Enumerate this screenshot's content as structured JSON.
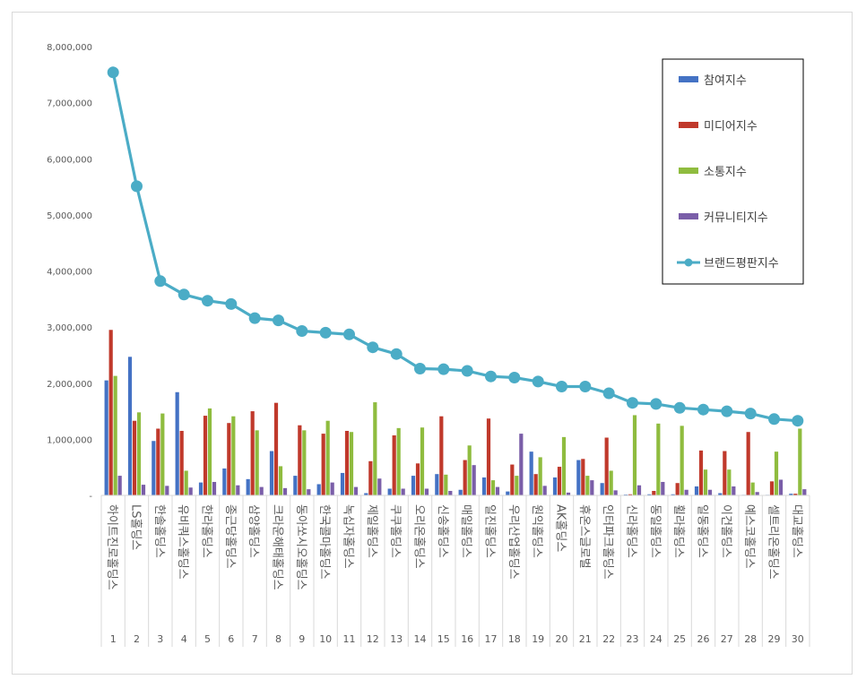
{
  "chart_data": {
    "type": "bar",
    "y_tick_labels": [
      "-",
      "1,000,000",
      "2,000,000",
      "3,000,000",
      "4,000,000",
      "5,000,000",
      "6,000,000",
      "7,000,000",
      "8,000,000"
    ],
    "ylim": [
      0,
      8000000
    ],
    "y_step": 1000000,
    "grid": false,
    "legend_position": "top-right",
    "categories": [
      "하이트진로홀딩스",
      "LS홀딩스",
      "한솔홀딩스",
      "유비쿼스홀딩스",
      "한라홀딩스",
      "종근당홀딩스",
      "삼양홀딩스",
      "크라운해태홀딩스",
      "동아쏘시오홀딩스",
      "한국콜마홀딩스",
      "녹십자홀딩스",
      "제일홀딩스",
      "쿠쿠홀딩스",
      "오리온홀딩스",
      "신송홀딩스",
      "매일홀딩스",
      "일진홀딩스",
      "우리산업홀딩스",
      "원익홀딩스",
      "AK홀딩스",
      "휴온스글로벌",
      "인터파크홀딩스",
      "신라홀딩스",
      "동일홀딩스",
      "휠라홀딩스",
      "일동홀딩스",
      "이건홀딩스",
      "예스코홀딩스",
      "셀트리온홀딩스",
      "대교홀딩스"
    ],
    "ranks": [
      "1",
      "2",
      "3",
      "4",
      "5",
      "6",
      "7",
      "8",
      "9",
      "10",
      "11",
      "12",
      "13",
      "14",
      "15",
      "16",
      "17",
      "18",
      "19",
      "20",
      "21",
      "22",
      "23",
      "24",
      "25",
      "26",
      "27",
      "28",
      "29",
      "30"
    ],
    "series": [
      {
        "name": "참여지수",
        "kind": "bar",
        "color": "#4472c4",
        "values": [
          2050000,
          2470000,
          970000,
          1840000,
          230000,
          480000,
          290000,
          790000,
          350000,
          200000,
          400000,
          40000,
          120000,
          350000,
          380000,
          100000,
          320000,
          70000,
          780000,
          320000,
          630000,
          220000,
          15000,
          20000,
          20000,
          160000,
          40000,
          10000,
          10000,
          30000
        ]
      },
      {
        "name": "미디어지수",
        "kind": "bar",
        "color": "#c0392b",
        "values": [
          2950000,
          1330000,
          1190000,
          1150000,
          1420000,
          1290000,
          1500000,
          1650000,
          1250000,
          1100000,
          1150000,
          610000,
          1070000,
          570000,
          1410000,
          630000,
          1370000,
          550000,
          380000,
          510000,
          650000,
          1030000,
          20000,
          80000,
          220000,
          800000,
          790000,
          1130000,
          250000,
          30000
        ]
      },
      {
        "name": "소통지수",
        "kind": "bar",
        "color": "#8fbc3f",
        "values": [
          2130000,
          1480000,
          1460000,
          440000,
          1550000,
          1410000,
          1160000,
          520000,
          1160000,
          1330000,
          1130000,
          1660000,
          1200000,
          1210000,
          370000,
          890000,
          270000,
          350000,
          680000,
          1040000,
          350000,
          440000,
          1430000,
          1280000,
          1240000,
          460000,
          460000,
          230000,
          780000,
          1190000
        ]
      },
      {
        "name": "커뮤니티지수",
        "kind": "bar",
        "color": "#7a5ea8",
        "values": [
          350000,
          190000,
          170000,
          140000,
          240000,
          180000,
          150000,
          130000,
          110000,
          230000,
          150000,
          300000,
          120000,
          120000,
          80000,
          540000,
          150000,
          1100000,
          170000,
          50000,
          270000,
          90000,
          180000,
          240000,
          100000,
          100000,
          160000,
          60000,
          280000,
          110000
        ]
      },
      {
        "name": "브랜드평판지수",
        "kind": "line",
        "color": "#4bacc6",
        "values": [
          7540000,
          5510000,
          3820000,
          3580000,
          3470000,
          3410000,
          3160000,
          3120000,
          2930000,
          2900000,
          2870000,
          2640000,
          2520000,
          2260000,
          2250000,
          2220000,
          2120000,
          2100000,
          2030000,
          1940000,
          1940000,
          1820000,
          1650000,
          1630000,
          1560000,
          1530000,
          1500000,
          1460000,
          1360000,
          1330000
        ]
      }
    ]
  }
}
